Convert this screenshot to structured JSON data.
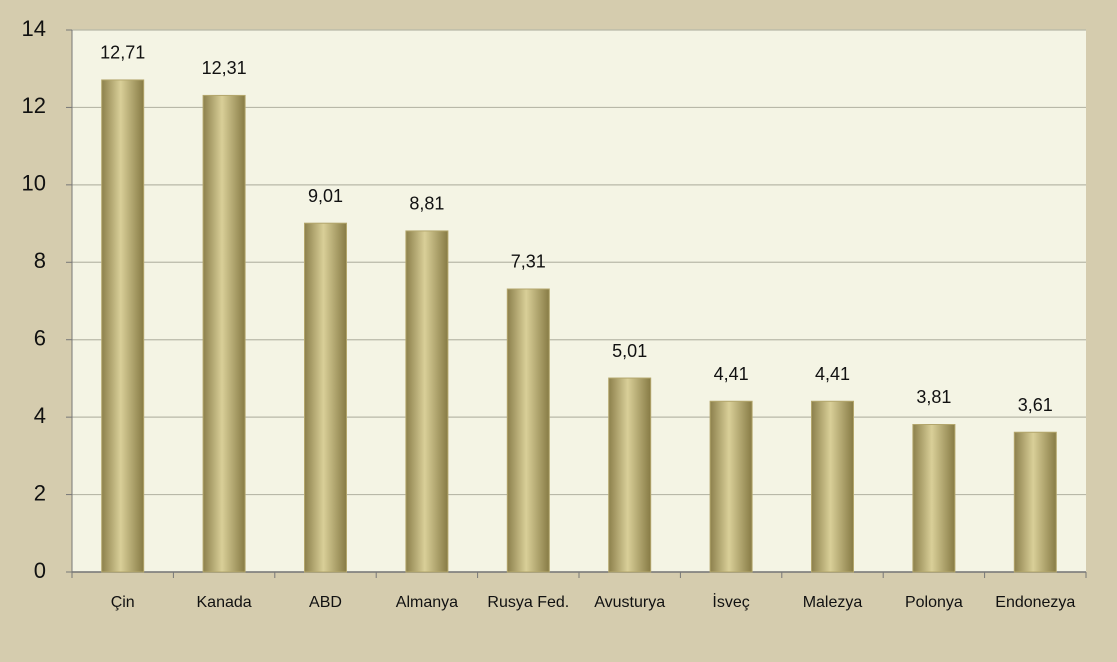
{
  "chart_data": {
    "type": "bar",
    "categories": [
      "Çin",
      "Kanada",
      "ABD",
      "Almanya",
      "Rusya Fed.",
      "Avusturya",
      "İsveç",
      "Malezya",
      "Polonya",
      "Endonezya"
    ],
    "values": [
      12.71,
      12.31,
      9.01,
      8.81,
      7.31,
      5.01,
      4.41,
      4.41,
      3.81,
      3.61
    ],
    "value_labels": [
      "12,71",
      "12,31",
      "9,01",
      "8,81",
      "7,31",
      "5,01",
      "4,41",
      "4,41",
      "3,81",
      "3,61"
    ],
    "color": "#b3a66c",
    "ylim": [
      0,
      14
    ],
    "yticks": [
      0,
      2,
      4,
      6,
      8,
      10,
      12,
      14
    ],
    "grid": true
  }
}
